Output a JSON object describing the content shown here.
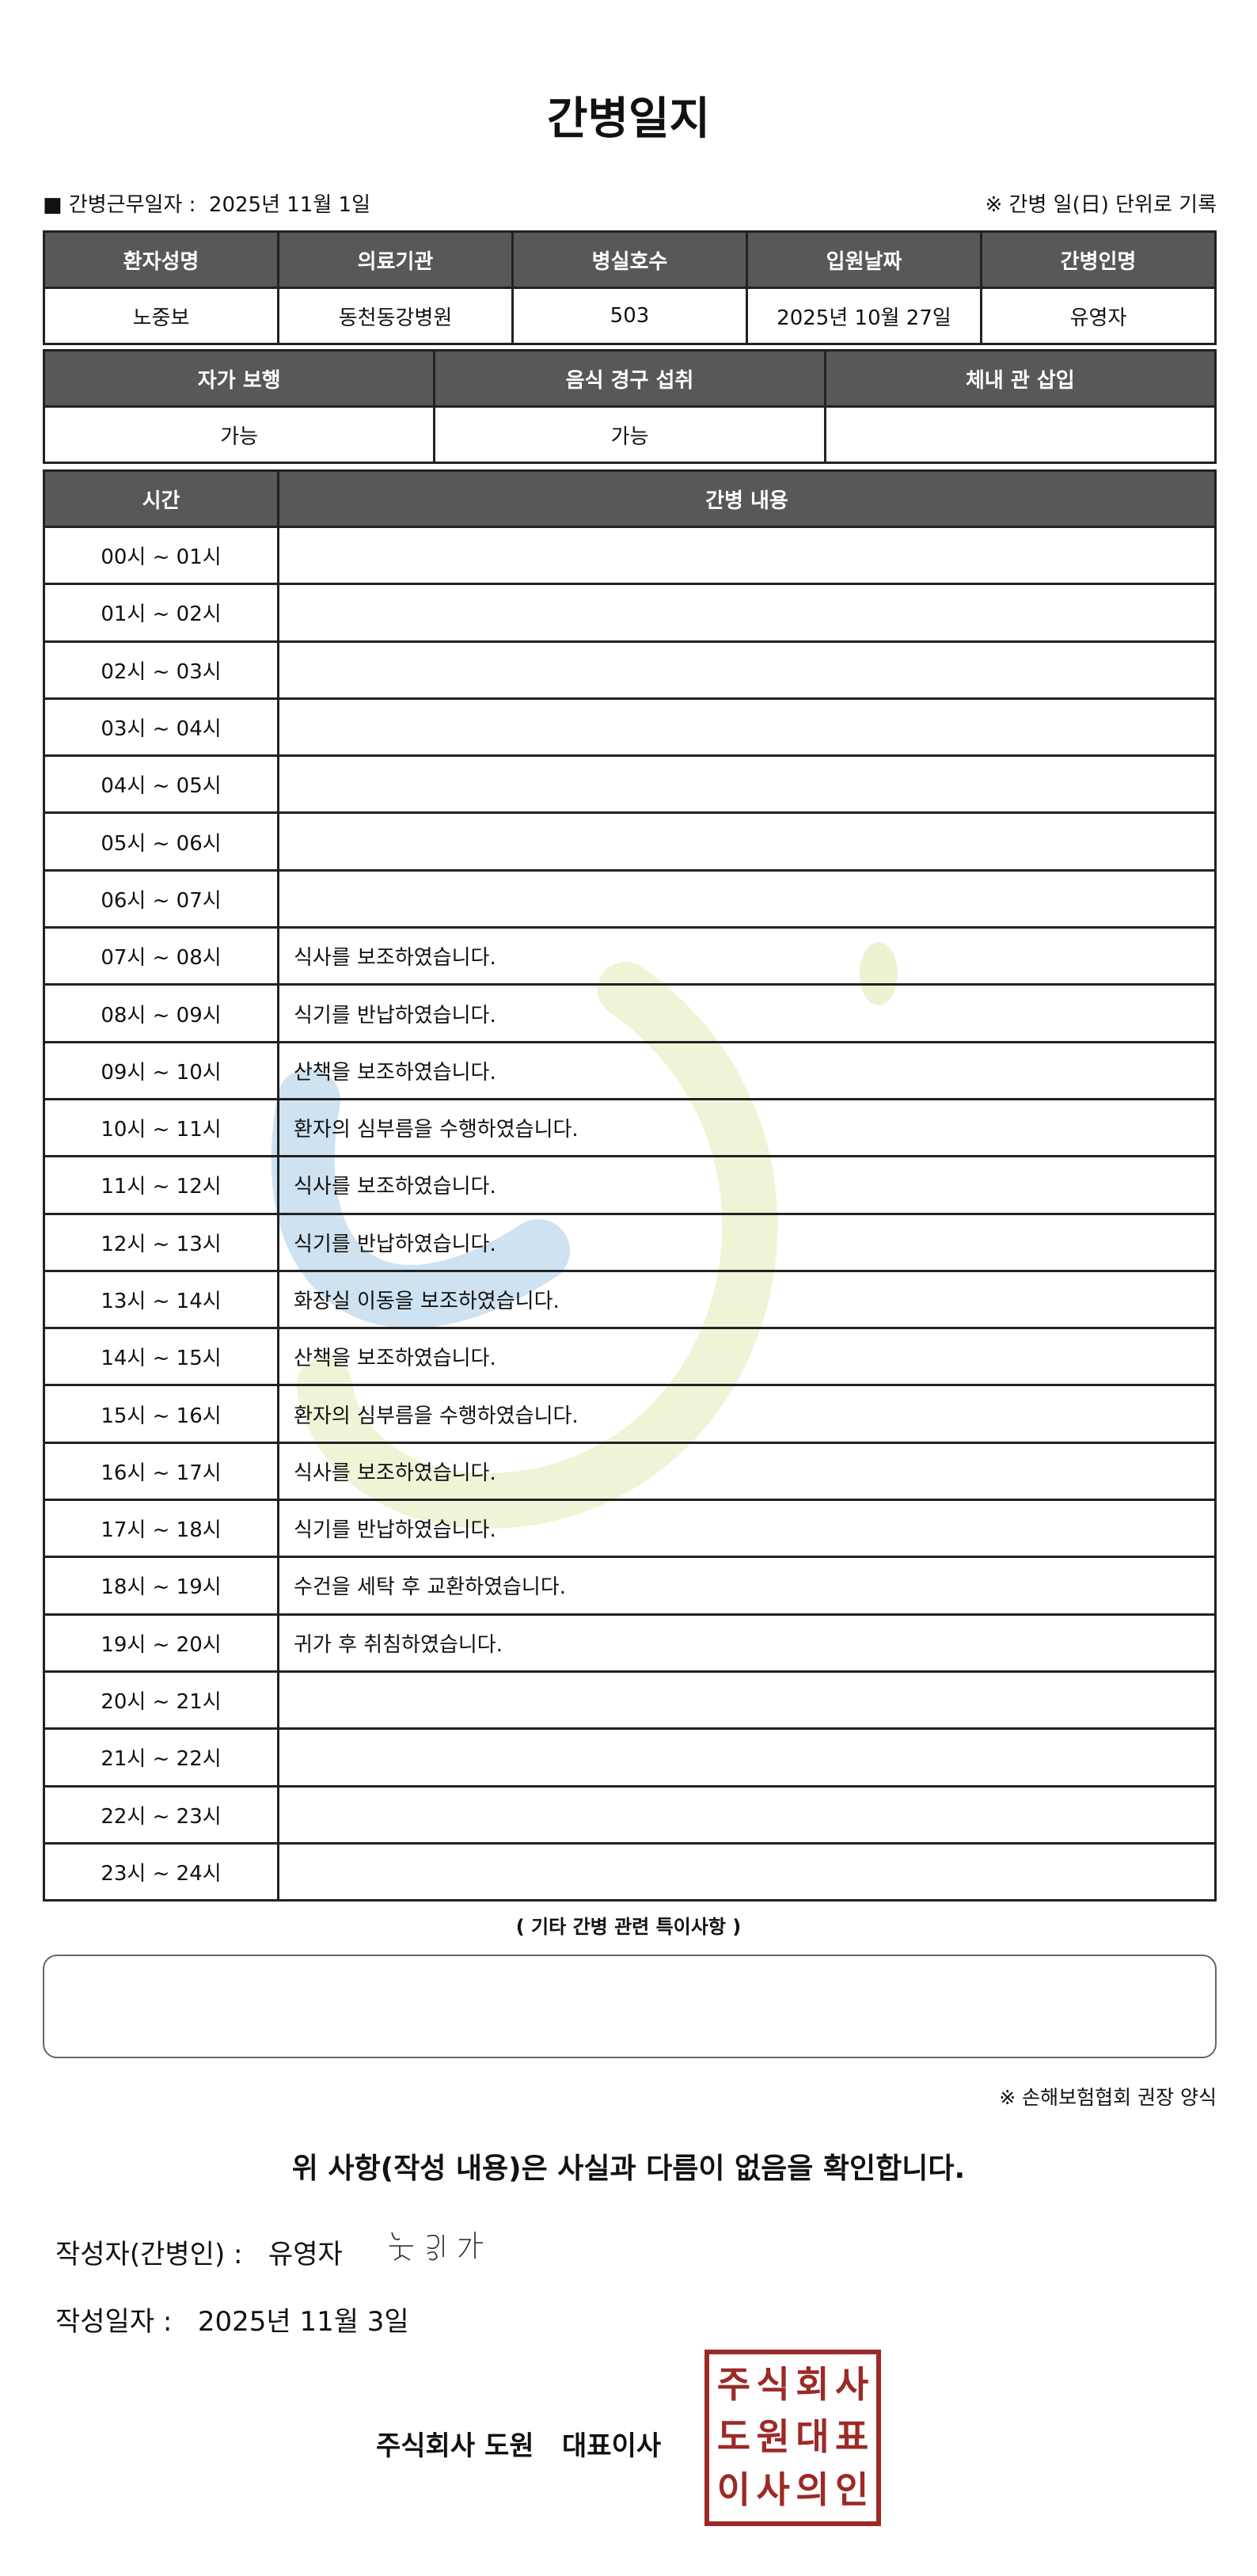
{
  "title": "간병일지",
  "info": {
    "work_date_label": "■ 간병근무일자 :",
    "work_date": "2025년 11월 1일",
    "note": "※ 간병 일(日) 단위로 기록"
  },
  "patient": {
    "headers": [
      "환자성명",
      "의료기관",
      "병실호수",
      "입원날짜",
      "간병인명"
    ],
    "values": [
      "노중보",
      "동천동강병원",
      "503",
      "2025년 10월 27일",
      "유영자"
    ]
  },
  "status": {
    "headers": [
      "자가 보행",
      "음식 경구 섭취",
      "체내 관 삽입"
    ],
    "values": [
      "가능",
      "가능",
      ""
    ]
  },
  "log": {
    "headers": [
      "시간",
      "간병 내용"
    ],
    "rows": [
      {
        "time": "00시 ~ 01시",
        "content": ""
      },
      {
        "time": "01시 ~ 02시",
        "content": ""
      },
      {
        "time": "02시 ~ 03시",
        "content": ""
      },
      {
        "time": "03시 ~ 04시",
        "content": ""
      },
      {
        "time": "04시 ~ 05시",
        "content": ""
      },
      {
        "time": "05시 ~ 06시",
        "content": ""
      },
      {
        "time": "06시 ~ 07시",
        "content": ""
      },
      {
        "time": "07시 ~ 08시",
        "content": "식사를 보조하였습니다."
      },
      {
        "time": "08시 ~ 09시",
        "content": "식기를 반납하였습니다."
      },
      {
        "time": "09시 ~ 10시",
        "content": "산책을 보조하였습니다."
      },
      {
        "time": "10시 ~ 11시",
        "content": "환자의 심부름을 수행하였습니다."
      },
      {
        "time": "11시 ~ 12시",
        "content": "식사를 보조하였습니다."
      },
      {
        "time": "12시 ~ 13시",
        "content": "식기를 반납하였습니다."
      },
      {
        "time": "13시 ~ 14시",
        "content": "화장실 이동을 보조하였습니다."
      },
      {
        "time": "14시 ~ 15시",
        "content": "산책을 보조하였습니다."
      },
      {
        "time": "15시 ~ 16시",
        "content": "환자의 심부름을 수행하였습니다."
      },
      {
        "time": "16시 ~ 17시",
        "content": "식사를 보조하였습니다."
      },
      {
        "time": "17시 ~ 18시",
        "content": "식기를 반납하였습니다."
      },
      {
        "time": "18시 ~ 19시",
        "content": "수건을 세탁 후 교환하였습니다."
      },
      {
        "time": "19시 ~ 20시",
        "content": "귀가 후 취침하였습니다."
      },
      {
        "time": "20시 ~ 21시",
        "content": ""
      },
      {
        "time": "21시 ~ 22시",
        "content": ""
      },
      {
        "time": "22시 ~ 23시",
        "content": ""
      },
      {
        "time": "23시 ~ 24시",
        "content": ""
      }
    ]
  },
  "notes": {
    "title": "( 기타 간병 관련 특이사항 )",
    "value": ""
  },
  "form_note": "※ 손해보험협회 권장 양식",
  "confirm": "위 사항(작성 내용)은 사실과 다름이 없음을 확인합니다.",
  "writer": {
    "label": "작성자(간병인) :",
    "name": "유영자",
    "signature": "유영자"
  },
  "written_date": {
    "label": "작성일자 :",
    "value": "2025년 11월 3일"
  },
  "company": "주식회사 도원   대표이사",
  "stamp": {
    "text": "주식회사도원대표이사의인",
    "color": "#9c2a26"
  },
  "watermark_colors": [
    "#c9dff0",
    "#eef2d2"
  ]
}
